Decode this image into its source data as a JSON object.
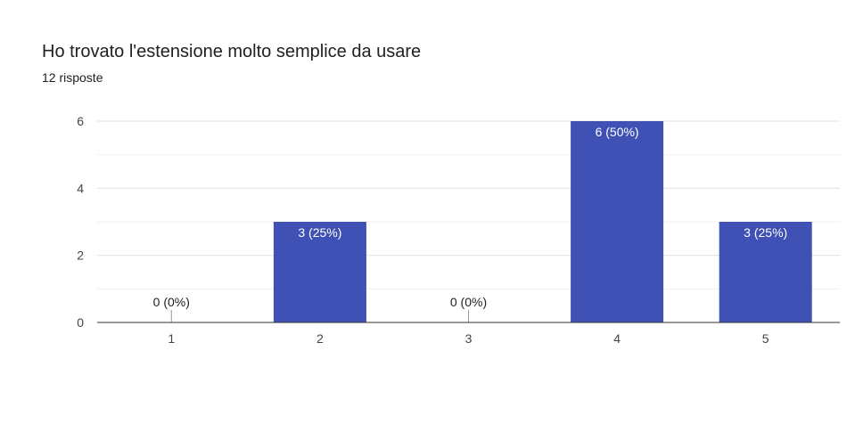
{
  "chart_data": {
    "type": "bar",
    "title": "Ho trovato l'estensione molto semplice da usare",
    "subtitle": "12 risposte",
    "categories": [
      "1",
      "2",
      "3",
      "4",
      "5"
    ],
    "values": [
      0,
      3,
      0,
      6,
      3
    ],
    "data_labels": [
      "0 (0%)",
      "3 (25%)",
      "0 (0%)",
      "6 (50%)",
      "3 (25%)"
    ],
    "y_ticks": [
      "0",
      "2",
      "4",
      "6"
    ],
    "ylim": [
      0,
      6
    ],
    "xlabel": "",
    "ylabel": "",
    "grid": true,
    "colors": {
      "bar": "#3f51b5",
      "grid": "#e6e6e6",
      "axis": "#333333"
    }
  }
}
